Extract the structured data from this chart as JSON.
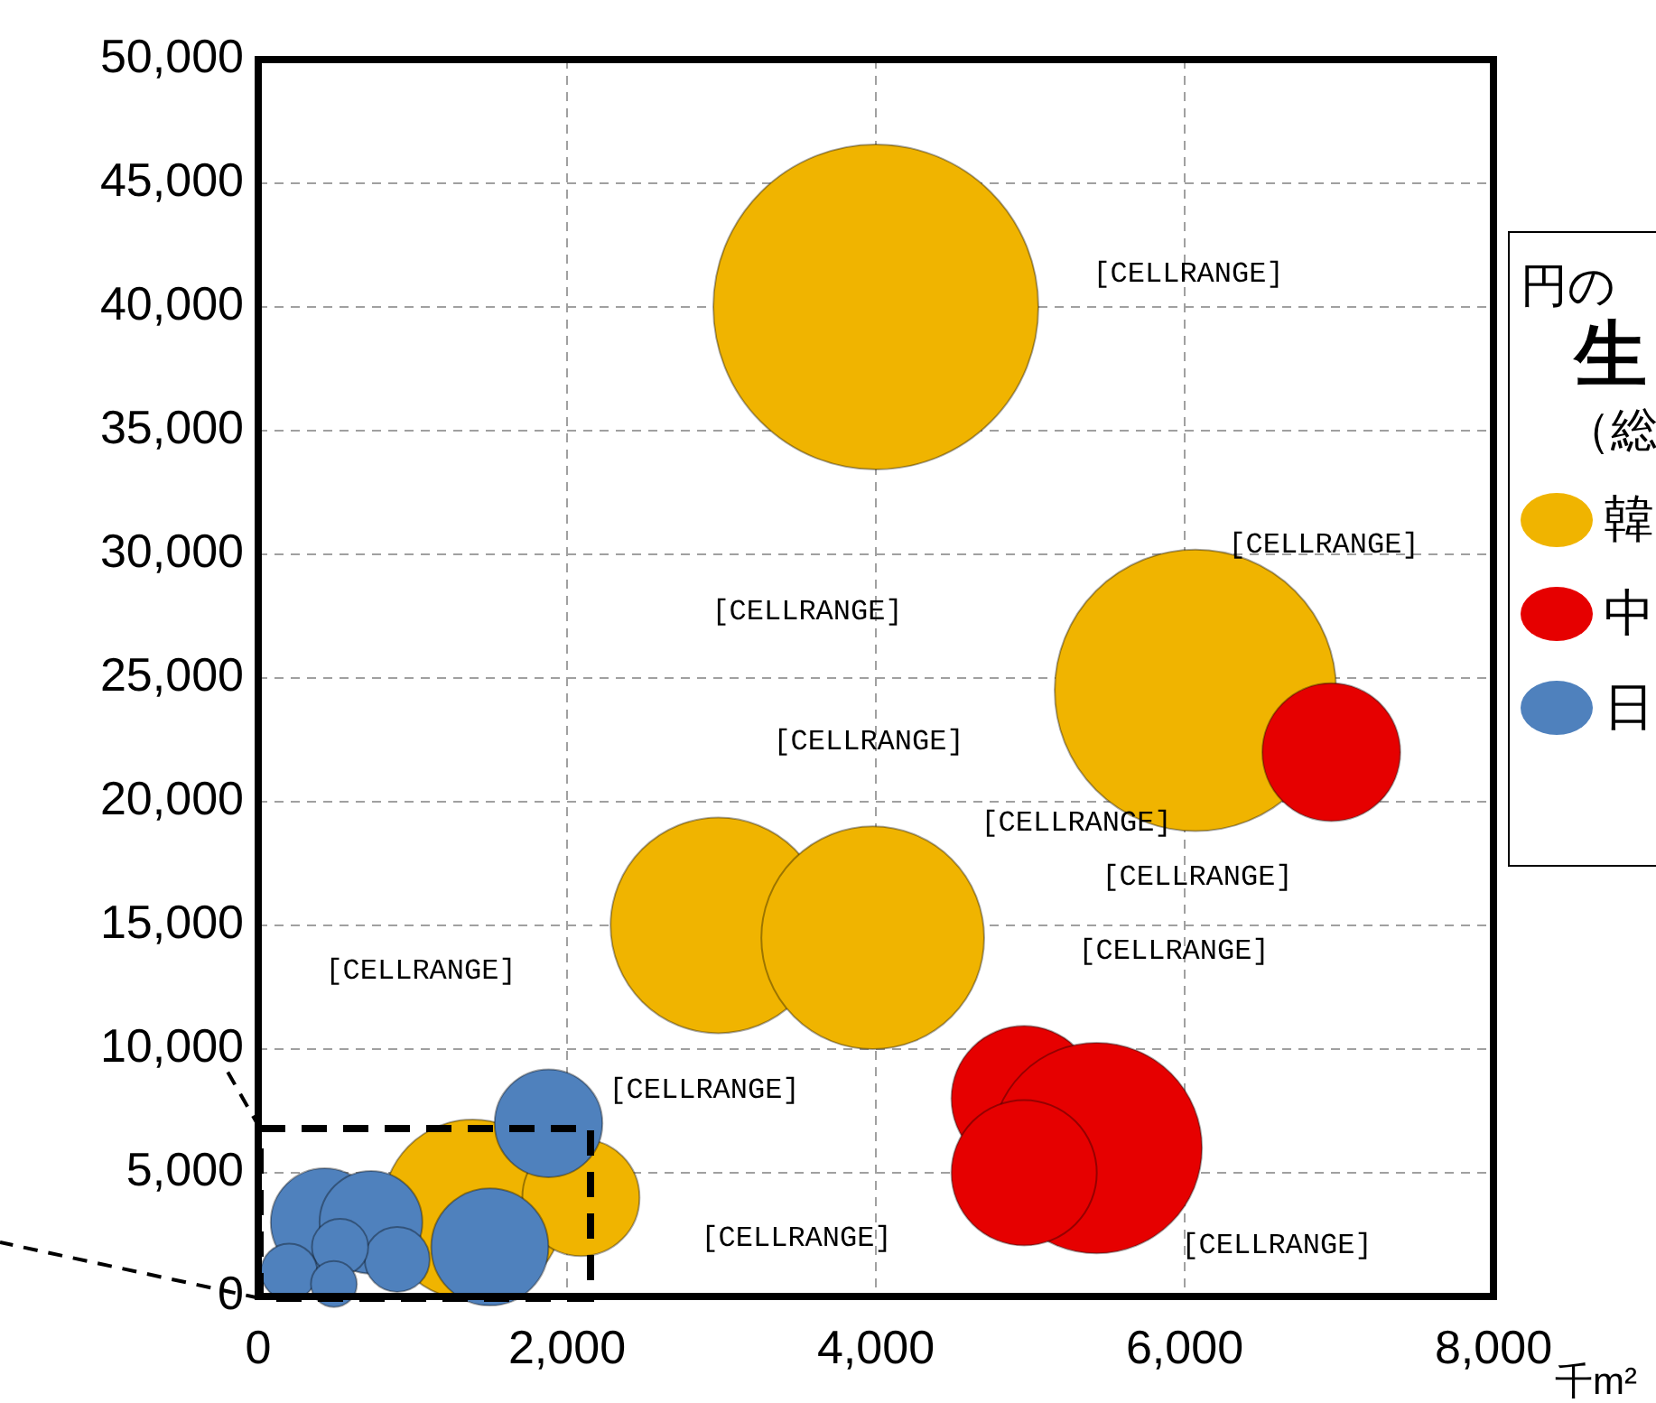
{
  "chart_data": {
    "type": "bubble",
    "xlabel": "千m²",
    "legend_title": "円の",
    "legend": "right",
    "grid": true,
    "xlim": [
      0,
      8000
    ],
    "xticks": [
      {
        "value": 0,
        "label": "0"
      },
      {
        "value": 2000,
        "label": "2,000"
      },
      {
        "value": 4000,
        "label": "4,000"
      },
      {
        "value": 6000,
        "label": "6,000"
      },
      {
        "value": 8000,
        "label": "8,000"
      }
    ],
    "ylim": [
      0,
      50000
    ],
    "yticks": [
      {
        "value": 0,
        "label": "0"
      },
      {
        "value": 5000,
        "label": "5,000"
      },
      {
        "value": 10000,
        "label": "10,000"
      },
      {
        "value": 15000,
        "label": "15,000"
      },
      {
        "value": 20000,
        "label": "20,000"
      },
      {
        "value": 25000,
        "label": "25,000"
      },
      {
        "value": 30000,
        "label": "30,000"
      },
      {
        "value": 35000,
        "label": "35,000"
      },
      {
        "value": 40000,
        "label": "40,000"
      },
      {
        "value": 45000,
        "label": "45,000"
      },
      {
        "value": 50000,
        "label": "50,000"
      }
    ],
    "series": [
      {
        "name": "韓",
        "color": "#f0b400",
        "x": [
          4000,
          6070,
          2980,
          3980,
          1390,
          2090
        ],
        "values": [
          40000,
          24500,
          15000,
          14500,
          3500,
          4000
        ],
        "sizes": [
          1,
          0.75,
          0.44,
          0.47,
          0.31,
          0.13
        ]
      },
      {
        "name": "中",
        "color": "#e60000",
        "x": [
          6950,
          4960,
          5430,
          4960
        ],
        "values": [
          22000,
          8000,
          6000,
          5000
        ],
        "sizes": [
          0.18,
          0.2,
          0.42,
          0.2
        ]
      },
      {
        "name": "日",
        "color": "#4f81bd",
        "x": [
          1880,
          1500,
          430,
          730,
          900,
          530,
          200,
          490
        ],
        "values": [
          7000,
          2000,
          3000,
          3000,
          1500,
          2000,
          1000,
          500
        ],
        "sizes": [
          0.11,
          0.13,
          0.11,
          0.1,
          0.04,
          0.03,
          0.03,
          0.02
        ]
      }
    ],
    "annotations": [
      "[CELLRANGE]",
      "[CELLRANGE]",
      "[CELLRANGE]",
      "[CELLRANGE]",
      "[CELLRANGE]",
      "[CELLRANGE]",
      "[CELLRANGE]",
      "[CELLRANGE]",
      "[CELLRANGE]",
      "[CELLRANGE]",
      "[CELLRANGE]",
      "生",
      "（総"
    ]
  }
}
